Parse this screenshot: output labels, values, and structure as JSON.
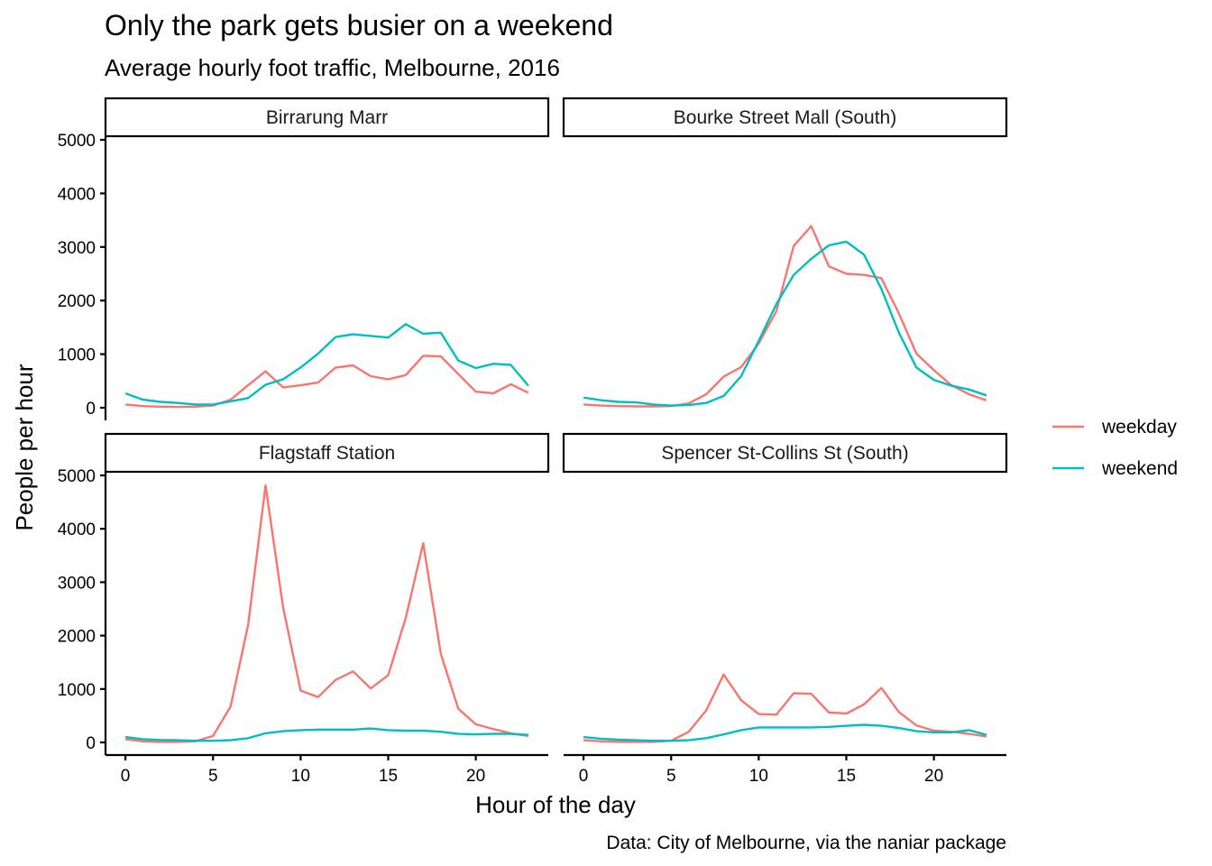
{
  "chart_data": {
    "type": "line",
    "title": "Only the park gets busier on a weekend",
    "subtitle": "Average hourly foot traffic, Melbourne, 2016",
    "xlabel": "Hour of the day",
    "ylabel": "People per hour",
    "caption": "Data: City of Melbourne, via the naniar package",
    "xlim": [
      0,
      23
    ],
    "ylim": [
      0,
      5000
    ],
    "x_ticks": [
      0,
      5,
      10,
      15,
      20
    ],
    "y_ticks": [
      0,
      1000,
      2000,
      3000,
      4000,
      5000
    ],
    "grid": false,
    "legend_position": "right",
    "legend": [
      {
        "name": "weekday",
        "color": "#F8766D"
      },
      {
        "name": "weekend",
        "color": "#00BFC4"
      }
    ],
    "x": [
      0,
      1,
      2,
      3,
      4,
      5,
      6,
      7,
      8,
      9,
      10,
      11,
      12,
      13,
      14,
      15,
      16,
      17,
      18,
      19,
      20,
      21,
      22,
      23
    ],
    "facets": [
      {
        "name": "Birrarung Marr",
        "series": [
          {
            "name": "weekday",
            "values": [
              60,
              30,
              20,
              15,
              20,
              40,
              150,
              420,
              680,
              380,
              420,
              470,
              750,
              790,
              590,
              530,
              610,
              970,
              960,
              630,
              300,
              270,
              440,
              280
            ]
          },
          {
            "name": "weekend",
            "values": [
              270,
              150,
              110,
              90,
              60,
              60,
              120,
              180,
              430,
              530,
              750,
              1010,
              1320,
              1370,
              1340,
              1310,
              1560,
              1380,
              1400,
              880,
              740,
              820,
              800,
              410
            ]
          }
        ]
      },
      {
        "name": "Bourke Street Mall (South)",
        "series": [
          {
            "name": "weekday",
            "values": [
              60,
              40,
              30,
              25,
              25,
              30,
              80,
              250,
              580,
              760,
              1200,
              1800,
              3020,
              3390,
              2640,
              2500,
              2480,
              2420,
              1760,
              1010,
              700,
              420,
              250,
              140
            ]
          },
          {
            "name": "weekend",
            "values": [
              190,
              140,
              110,
              100,
              60,
              40,
              50,
              90,
              220,
              590,
              1250,
              1930,
              2480,
              2780,
              3030,
              3100,
              2860,
              2220,
              1400,
              750,
              520,
              410,
              340,
              230
            ]
          }
        ]
      },
      {
        "name": "Flagstaff Station",
        "series": [
          {
            "name": "weekday",
            "values": [
              60,
              20,
              10,
              10,
              20,
              120,
              670,
              2200,
              4810,
              2530,
              970,
              850,
              1170,
              1330,
              1010,
              1260,
              2330,
              3730,
              1660,
              630,
              340,
              250,
              170,
              120
            ]
          },
          {
            "name": "weekend",
            "values": [
              100,
              60,
              45,
              40,
              30,
              30,
              40,
              80,
              170,
              210,
              230,
              240,
              240,
              240,
              260,
              230,
              220,
              220,
              200,
              160,
              150,
              160,
              160,
              140
            ]
          }
        ]
      },
      {
        "name": "Spencer St-Collins St (South)",
        "series": [
          {
            "name": "weekday",
            "values": [
              40,
              20,
              10,
              10,
              10,
              30,
              200,
              600,
              1270,
              790,
              530,
              520,
              920,
              910,
              560,
              540,
              710,
              1020,
              570,
              320,
              220,
              200,
              160,
              110
            ]
          },
          {
            "name": "weekend",
            "values": [
              100,
              70,
              50,
              40,
              30,
              30,
              40,
              80,
              150,
              230,
              280,
              280,
              280,
              280,
              290,
              310,
              330,
              310,
              270,
              210,
              190,
              190,
              230,
              140
            ]
          }
        ]
      }
    ]
  }
}
